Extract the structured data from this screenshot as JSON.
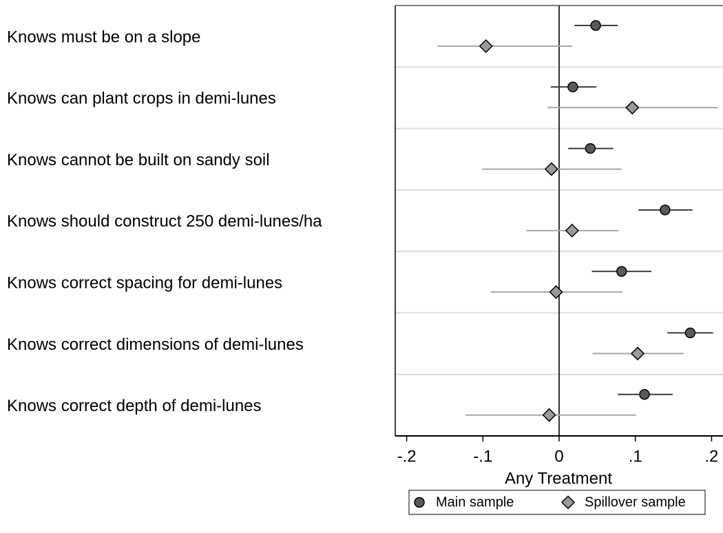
{
  "chart_data": {
    "type": "coefplot",
    "xlabel": "Any Treatment",
    "categories": [
      "Knows must be on a slope",
      "Knows can plant crops in demi-lunes",
      "Knows cannot be built on sandy soil",
      "Knows should construct 250 demi-lunes/ha",
      "Knows correct spacing for demi-lunes",
      "Knows correct dimensions of demi-lunes",
      "Knows correct depth of demi-lunes"
    ],
    "series": [
      {
        "name": "Main sample",
        "color": "#5a5a5a",
        "ci_color": "#3a3a3a",
        "marker": "circle",
        "values": [
          0.048,
          0.018,
          0.041,
          0.139,
          0.082,
          0.172,
          0.112
        ],
        "lower": [
          0.02,
          -0.011,
          0.012,
          0.104,
          0.043,
          0.142,
          0.077
        ],
        "upper": [
          0.077,
          0.049,
          0.071,
          0.175,
          0.121,
          0.202,
          0.149
        ]
      },
      {
        "name": "Spillover sample",
        "color": "#9a9a9a",
        "ci_color": "#a8a8a8",
        "marker": "diamond",
        "values": [
          -0.096,
          0.096,
          -0.01,
          0.017,
          -0.004,
          0.103,
          -0.013
        ],
        "lower": [
          -0.16,
          -0.015,
          -0.101,
          -0.043,
          -0.09,
          0.044,
          -0.123
        ],
        "upper": [
          0.017,
          0.208,
          0.082,
          0.078,
          0.083,
          0.163,
          0.101
        ]
      }
    ],
    "xlim": [
      -0.215,
      0.215
    ],
    "xticks": [
      {
        "value": -0.2,
        "label": "-.2"
      },
      {
        "value": -0.1,
        "label": "-.1"
      },
      0,
      {
        "value": 0.1,
        "label": ".1"
      },
      {
        "value": 0.2,
        "label": ".2"
      }
    ],
    "reference_line": 0,
    "legend": "bottom"
  }
}
